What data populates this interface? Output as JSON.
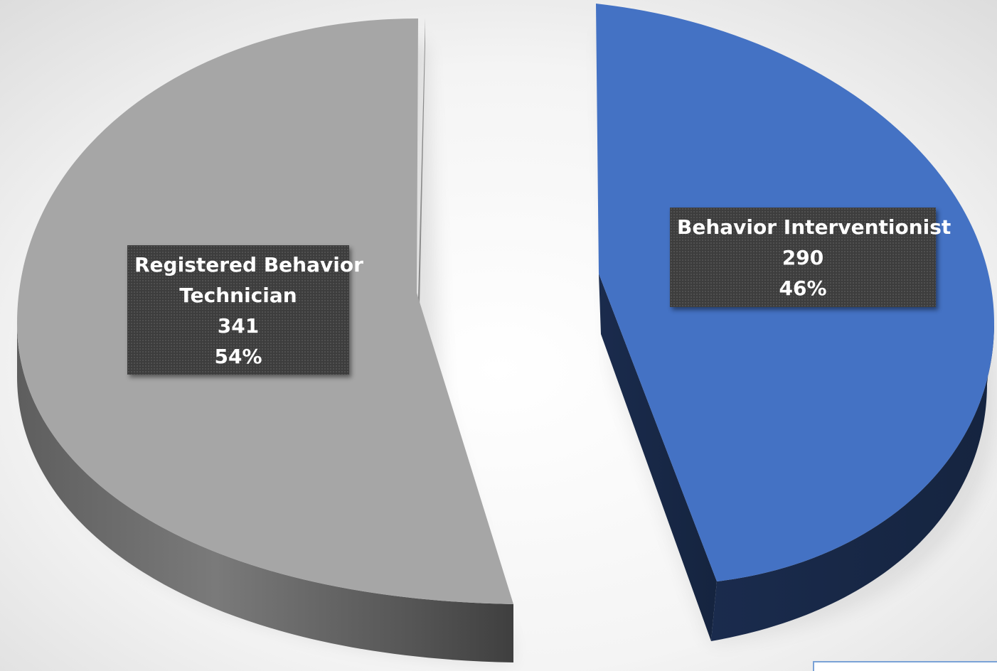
{
  "chart_data": {
    "type": "pie",
    "title": "",
    "slices": [
      {
        "label_lines": [
          "Registered Behavior",
          "Technician"
        ],
        "value": 341,
        "value_text": "341",
        "percent": 54,
        "percent_text": "54%",
        "color": "#a6a6a6",
        "side_color": "#5a5a5a"
      },
      {
        "label_lines": [
          "Behavior Interventionist"
        ],
        "value": 290,
        "value_text": "290",
        "percent": 46,
        "percent_text": "46%",
        "color": "#4472c4",
        "side_color": "#1a2b4d"
      }
    ],
    "legend": "none",
    "style": "3d-exploded"
  }
}
